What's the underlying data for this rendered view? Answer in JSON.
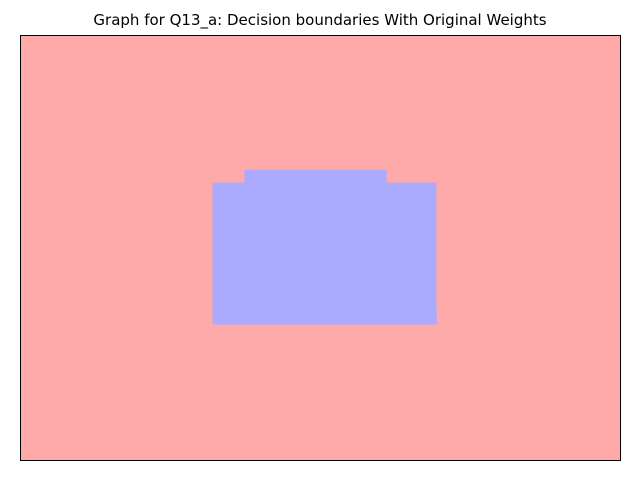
{
  "chart_data": {
    "type": "heatmap",
    "title": "Graph for Q13_a: Decision boundaries With Original Weights",
    "xlabel": "",
    "ylabel": "",
    "xlim": [
      0,
      1
    ],
    "ylim": [
      0,
      1
    ],
    "axis_ticks": "hidden",
    "grid": false,
    "classes": [
      {
        "class": 0,
        "color": "#ffaaaa"
      },
      {
        "class": 1,
        "color": "#aaaaff"
      }
    ],
    "regions": [
      {
        "class": 0,
        "x": [
          0.0,
          1.0
        ],
        "y": [
          0.0,
          1.0
        ]
      },
      {
        "class": 1,
        "x": [
          0.32,
          0.693
        ],
        "y": [
          0.32,
          0.654
        ]
      },
      {
        "class": 1,
        "x": [
          0.373,
          0.61
        ],
        "y": [
          0.654,
          0.684
        ]
      },
      {
        "class": 1,
        "x": [
          0.693,
          0.693
        ],
        "y": [
          0.32,
          0.36
        ]
      }
    ]
  }
}
